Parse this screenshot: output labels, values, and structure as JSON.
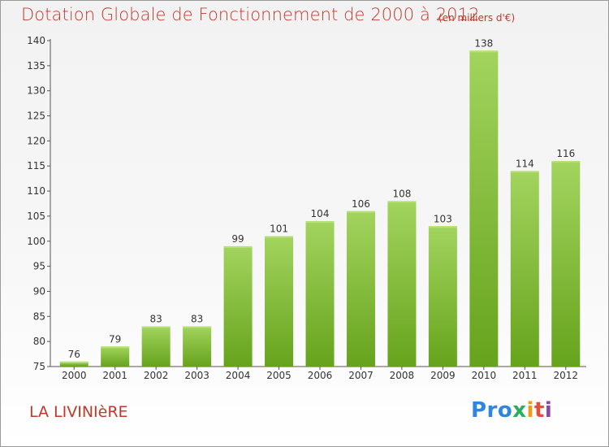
{
  "header": {
    "title": "Dotation Globale de Fonctionnement de 2000 à 2012",
    "subtitle": "(en milliers d'€)"
  },
  "footer": {
    "place": "LA LIVINIèRE",
    "logo_parts": [
      "Pro",
      "x",
      "i",
      "t",
      "i"
    ]
  },
  "colors": {
    "bar_light": "#a2d45e",
    "bar_dark": "#66a31c",
    "title_red": "#c0392b"
  },
  "chart_data": {
    "type": "bar",
    "title": "Dotation Globale de Fonctionnement de 2000 à 2012",
    "subtitle": "(en milliers d'€)",
    "xlabel": "",
    "ylabel": "",
    "categories": [
      "2000",
      "2001",
      "2002",
      "2003",
      "2004",
      "2005",
      "2006",
      "2007",
      "2008",
      "2009",
      "2010",
      "2011",
      "2012"
    ],
    "values": [
      76,
      79,
      83,
      83,
      99,
      101,
      104,
      106,
      108,
      103,
      138,
      114,
      116
    ],
    "ylim": [
      75,
      140
    ],
    "yticks": [
      75,
      80,
      85,
      90,
      95,
      100,
      105,
      110,
      115,
      120,
      125,
      130,
      135,
      140
    ],
    "grid": false,
    "data_labels": true
  }
}
